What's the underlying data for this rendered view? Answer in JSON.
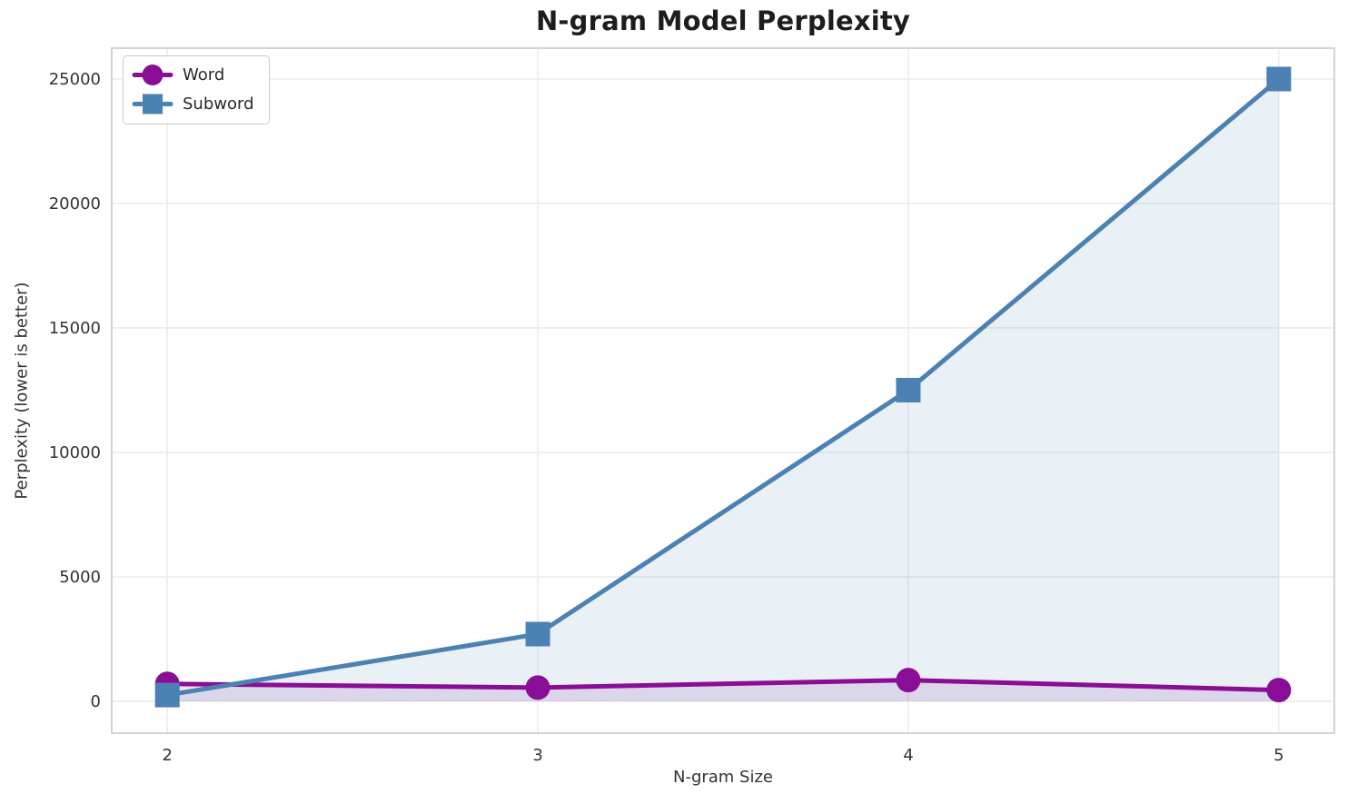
{
  "chart_data": {
    "type": "line",
    "title": "N-gram Model Perplexity",
    "xlabel": "N-gram Size",
    "ylabel": "Perplexity (lower is better)",
    "x": [
      2,
      3,
      4,
      5
    ],
    "series": [
      {
        "name": "Word",
        "color": "#8a0d96",
        "marker": "circle",
        "values": [
          700,
          550,
          850,
          450
        ]
      },
      {
        "name": "Subword",
        "color": "#4b81b3",
        "marker": "square",
        "values": [
          250,
          2700,
          12500,
          25000
        ]
      }
    ],
    "fill_to_zero": true,
    "fill_opacity": 0.12,
    "xticks": [
      "2",
      "3",
      "4",
      "5"
    ],
    "xtick_values": [
      2,
      3,
      4,
      5
    ],
    "yticks": [
      "0",
      "5000",
      "10000",
      "15000",
      "20000",
      "25000"
    ],
    "ytick_values": [
      0,
      5000,
      10000,
      15000,
      20000,
      25000
    ],
    "xlim": [
      1.85,
      5.15
    ],
    "ylim": [
      -1280,
      26240
    ],
    "grid": true,
    "legend_position": "upper left",
    "line_width": 5,
    "marker_size": 27,
    "colors": {
      "grid": "#ececec",
      "spine": "#d3d3d3",
      "tick_text": "#333333",
      "title_text": "#1d1d1d"
    }
  }
}
